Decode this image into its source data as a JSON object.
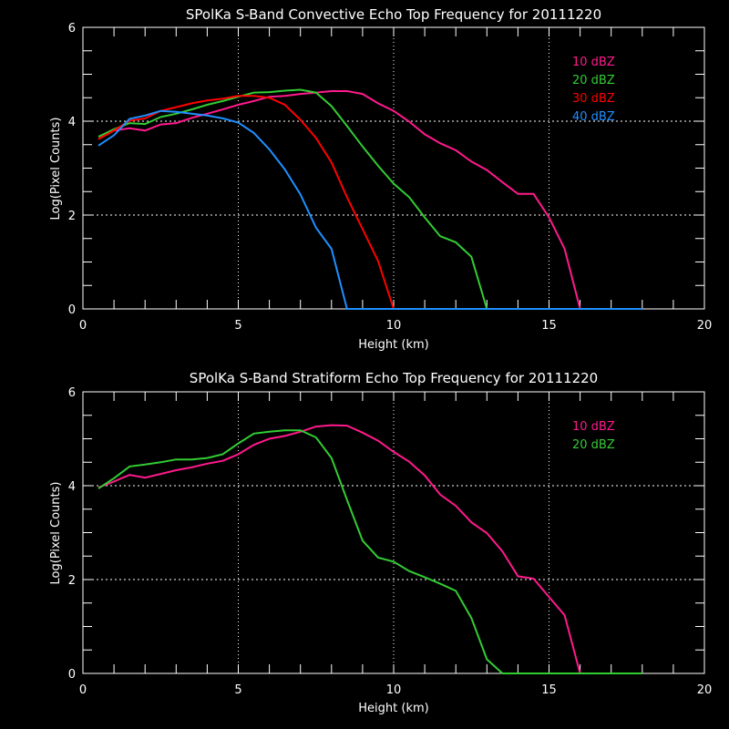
{
  "chart_data": [
    {
      "type": "line",
      "title": "SPolKa S-Band Convective Echo Top Frequency for 20111220",
      "xlabel": "Height (km)",
      "ylabel": "Log(Pixel Counts)",
      "xlim": [
        0,
        20
      ],
      "ylim": [
        0,
        6
      ],
      "xticks": [
        "0",
        "5",
        "10",
        "15",
        "20"
      ],
      "yticks": [
        "0",
        "2",
        "4",
        "6"
      ],
      "grid": "dotted at x=5,10,15 and y=2,4",
      "legend_position": "top-right",
      "x": [
        0.5,
        1,
        1.5,
        2,
        2.5,
        3,
        3.5,
        4,
        4.5,
        5,
        5.5,
        6,
        6.5,
        7,
        7.5,
        8,
        8.5,
        9,
        9.5,
        10,
        10.5,
        11,
        11.5,
        12,
        12.5,
        13,
        13.5,
        14,
        14.5,
        15,
        15.5,
        16,
        16.5,
        17,
        17.5,
        18
      ],
      "series": [
        {
          "name": "10 dBZ",
          "color": "#ff1a8c",
          "values": [
            3.62,
            3.8,
            3.85,
            3.8,
            3.93,
            3.96,
            4.07,
            4.16,
            4.25,
            4.35,
            4.43,
            4.52,
            4.54,
            4.58,
            4.61,
            4.64,
            4.64,
            4.58,
            4.38,
            4.22,
            3.99,
            3.72,
            3.53,
            3.38,
            3.14,
            2.96,
            2.7,
            2.45,
            2.45,
            1.95,
            1.28,
            0,
            0,
            0,
            0,
            0
          ]
        },
        {
          "name": "20 dBZ",
          "color": "#33cc33",
          "values": [
            3.67,
            3.83,
            3.96,
            3.94,
            4.09,
            4.16,
            4.25,
            4.35,
            4.43,
            4.52,
            4.61,
            4.62,
            4.65,
            4.67,
            4.61,
            4.32,
            3.9,
            3.46,
            3.05,
            2.67,
            2.38,
            1.95,
            1.55,
            1.42,
            1.11,
            0,
            0,
            0,
            0,
            0,
            0,
            0,
            0,
            0,
            0,
            0
          ]
        },
        {
          "name": "30 dBZ",
          "color": "#ff0000",
          "values": [
            3.62,
            3.8,
            4.01,
            4.06,
            4.22,
            4.3,
            4.38,
            4.44,
            4.48,
            4.54,
            4.54,
            4.5,
            4.35,
            4.03,
            3.64,
            3.12,
            2.38,
            1.7,
            1.02,
            0,
            0,
            0,
            0,
            0,
            0,
            0,
            0,
            0,
            0,
            0,
            0,
            0,
            0,
            0,
            0,
            0
          ]
        },
        {
          "name": "40 dBZ",
          "color": "#1e90ff",
          "values": [
            3.48,
            3.7,
            4.05,
            4.12,
            4.22,
            4.2,
            4.16,
            4.12,
            4.06,
            3.97,
            3.75,
            3.4,
            2.97,
            2.44,
            1.73,
            1.28,
            0,
            0,
            0,
            0,
            0,
            0,
            0,
            0,
            0,
            0,
            0,
            0,
            0,
            0,
            0,
            0,
            0,
            0,
            0,
            0
          ]
        }
      ]
    },
    {
      "type": "line",
      "title": "SPolKa S-Band Stratiform Echo Top Frequency for 20111220",
      "xlabel": "Height (km)",
      "ylabel": "Log(Pixel Counts)",
      "xlim": [
        0,
        20
      ],
      "ylim": [
        0,
        6
      ],
      "xticks": [
        "0",
        "5",
        "10",
        "15",
        "20"
      ],
      "yticks": [
        "0",
        "2",
        "4",
        "6"
      ],
      "grid": "dotted at x=5,10,15 and y=2,4",
      "legend_position": "top-right",
      "x": [
        0.5,
        1,
        1.5,
        2,
        2.5,
        3,
        3.5,
        4,
        4.5,
        5,
        5.5,
        6,
        6.5,
        7,
        7.5,
        8,
        8.5,
        9,
        9.5,
        10,
        10.5,
        11,
        11.5,
        12,
        12.5,
        13,
        13.5,
        14,
        14.5,
        15,
        15.5,
        16,
        16.5,
        17,
        17.5,
        18
      ],
      "series": [
        {
          "name": "10 dBZ",
          "color": "#ff1a8c",
          "values": [
            3.96,
            4.09,
            4.23,
            4.17,
            4.25,
            4.33,
            4.39,
            4.47,
            4.53,
            4.67,
            4.87,
            5.0,
            5.06,
            5.15,
            5.26,
            5.29,
            5.28,
            5.13,
            4.96,
            4.72,
            4.51,
            4.22,
            3.81,
            3.57,
            3.22,
            2.99,
            2.6,
            2.07,
            2.02,
            1.63,
            1.24,
            0,
            0,
            0,
            0,
            0
          ]
        },
        {
          "name": "20 dBZ",
          "color": "#33cc33",
          "values": [
            3.94,
            4.16,
            4.41,
            4.45,
            4.5,
            4.56,
            4.56,
            4.59,
            4.67,
            4.9,
            5.11,
            5.15,
            5.18,
            5.18,
            5.03,
            4.59,
            3.7,
            2.83,
            2.47,
            2.38,
            2.18,
            2.05,
            1.91,
            1.76,
            1.18,
            0.3,
            0,
            0,
            0,
            0,
            0,
            0,
            0,
            0,
            0,
            0
          ]
        }
      ]
    }
  ]
}
